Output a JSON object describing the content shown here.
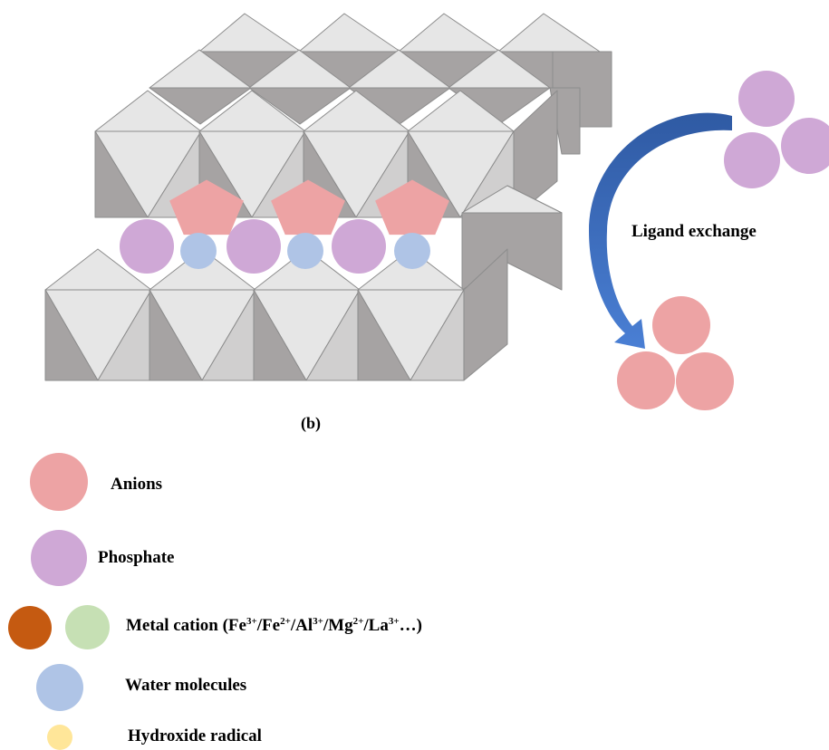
{
  "diagram": {
    "panel_label": "(b)",
    "process_label": "Ligand exchange",
    "colors": {
      "anion": "#eda3a4",
      "phosphate": "#cfa8d6",
      "water": "#afc4e6",
      "metal_iron": "#c55a11",
      "metal_green": "#c6e0b4",
      "hydroxide": "#ffe699",
      "octa_light": "#e6e6e6",
      "octa_dark": "#a6a3a3",
      "octa_stroke": "#8c8c8c",
      "arrow": "#3d6bbf"
    }
  },
  "legend": {
    "anions": "Anions",
    "phosphate": "Phosphate",
    "metal_cation": {
      "prefix": "Metal cation (Fe",
      "fe3": "3+",
      "sep1": "/Fe",
      "fe2": "2+",
      "sep2": "/Al",
      "al3": "3+",
      "sep3": "/Mg",
      "mg2": "2+",
      "sep4": "/La",
      "la3": "3+",
      "suffix": "…)"
    },
    "water": "Water molecules",
    "hydroxide": "Hydroxide radical"
  }
}
